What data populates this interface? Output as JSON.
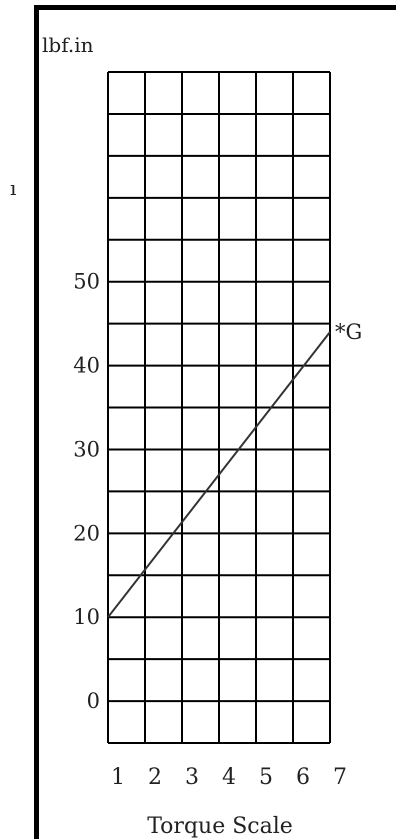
{
  "stray_glyph": "ı",
  "chart_data": {
    "type": "line",
    "title": "",
    "ylabel": "lbf.in",
    "xlabel": "Torque Scale",
    "x_ticks": [
      1,
      2,
      3,
      4,
      5,
      6,
      7
    ],
    "y_ticks": [
      0,
      10,
      20,
      30,
      40,
      50
    ],
    "xlim": [
      1,
      7
    ],
    "ylim": [
      -5,
      75
    ],
    "grid": true,
    "grid_x_step": 1,
    "grid_y_step": 5,
    "series": [
      {
        "name": "",
        "end_label": "*G",
        "color": "#333333",
        "points": [
          [
            1,
            10
          ],
          [
            7,
            44
          ]
        ]
      }
    ]
  }
}
